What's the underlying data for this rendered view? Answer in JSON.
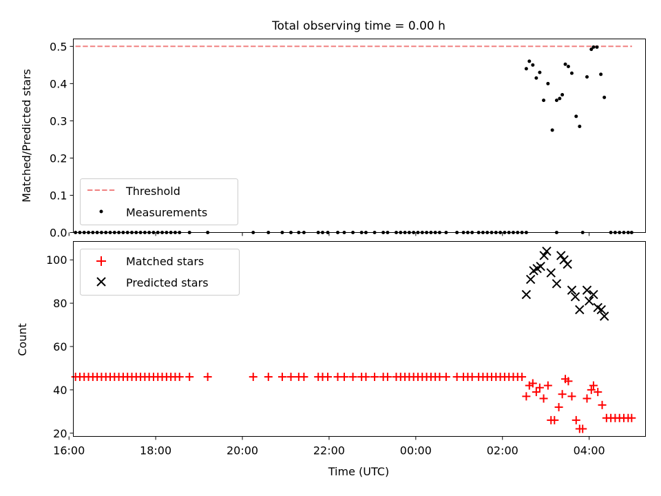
{
  "title": "Total observing time = 0.00 h",
  "colors": {
    "threshold": "#f08080",
    "measurements": "#000000",
    "matched": "#ff0000",
    "predicted": "#000000"
  },
  "chart_data": [
    {
      "type": "scatter",
      "panel": "top",
      "ylabel": "Matched/Predicted stars",
      "xlim": [
        16.1,
        29.3
      ],
      "ylim": [
        0,
        0.52
      ],
      "yticks": [
        0.0,
        0.1,
        0.2,
        0.3,
        0.4,
        0.5
      ],
      "ytick_labels": [
        "0.0",
        "0.1",
        "0.2",
        "0.3",
        "0.4",
        "0.5"
      ],
      "legend_position": "lower-left",
      "threshold": {
        "name": "Threshold",
        "style": "dashed",
        "x": [
          16.15,
          28.99
        ],
        "y": 0.5
      },
      "series": [
        {
          "name": "Measurements",
          "points": [
            [
              16.15,
              0
            ],
            [
              16.25,
              0
            ],
            [
              16.35,
              0
            ],
            [
              16.45,
              0
            ],
            [
              16.55,
              0
            ],
            [
              16.65,
              0
            ],
            [
              16.75,
              0
            ],
            [
              16.85,
              0
            ],
            [
              16.95,
              0
            ],
            [
              17.05,
              0
            ],
            [
              17.15,
              0
            ],
            [
              17.25,
              0
            ],
            [
              17.35,
              0
            ],
            [
              17.45,
              0
            ],
            [
              17.55,
              0
            ],
            [
              17.65,
              0
            ],
            [
              17.75,
              0
            ],
            [
              17.85,
              0
            ],
            [
              17.95,
              0
            ],
            [
              18.05,
              0
            ],
            [
              18.15,
              0
            ],
            [
              18.25,
              0
            ],
            [
              18.35,
              0
            ],
            [
              18.45,
              0
            ],
            [
              18.55,
              0
            ],
            [
              18.78,
              0
            ],
            [
              19.2,
              0
            ],
            [
              20.25,
              0
            ],
            [
              20.6,
              0
            ],
            [
              20.92,
              0
            ],
            [
              21.12,
              0
            ],
            [
              21.3,
              0
            ],
            [
              21.42,
              0
            ],
            [
              21.75,
              0
            ],
            [
              21.85,
              0
            ],
            [
              21.97,
              0
            ],
            [
              22.2,
              0
            ],
            [
              22.35,
              0
            ],
            [
              22.55,
              0
            ],
            [
              22.75,
              0
            ],
            [
              22.85,
              0
            ],
            [
              23.05,
              0
            ],
            [
              23.25,
              0
            ],
            [
              23.35,
              0
            ],
            [
              23.55,
              0
            ],
            [
              23.65,
              0
            ],
            [
              23.75,
              0
            ],
            [
              23.85,
              0
            ],
            [
              23.95,
              0
            ],
            [
              24.05,
              0
            ],
            [
              24.15,
              0
            ],
            [
              24.25,
              0
            ],
            [
              24.35,
              0
            ],
            [
              24.45,
              0
            ],
            [
              24.55,
              0
            ],
            [
              24.7,
              0
            ],
            [
              24.95,
              0
            ],
            [
              25.1,
              0
            ],
            [
              25.2,
              0
            ],
            [
              25.3,
              0
            ],
            [
              25.45,
              0
            ],
            [
              25.55,
              0
            ],
            [
              25.65,
              0
            ],
            [
              25.75,
              0
            ],
            [
              25.85,
              0
            ],
            [
              25.95,
              0
            ],
            [
              26.05,
              0
            ],
            [
              26.15,
              0
            ],
            [
              26.25,
              0
            ],
            [
              26.35,
              0
            ],
            [
              26.45,
              0
            ],
            [
              26.55,
              0
            ],
            [
              27.25,
              0
            ],
            [
              27.85,
              0
            ],
            [
              28.5,
              0
            ],
            [
              28.6,
              0
            ],
            [
              28.7,
              0
            ],
            [
              28.8,
              0
            ],
            [
              28.9,
              0
            ],
            [
              28.98,
              0
            ],
            [
              26.55,
              0.44
            ],
            [
              26.62,
              0.46
            ],
            [
              26.7,
              0.45
            ],
            [
              26.78,
              0.415
            ],
            [
              26.86,
              0.43
            ],
            [
              26.95,
              0.355
            ],
            [
              27.05,
              0.4
            ],
            [
              27.15,
              0.275
            ],
            [
              27.25,
              0.355
            ],
            [
              27.32,
              0.36
            ],
            [
              27.38,
              0.37
            ],
            [
              27.45,
              0.452
            ],
            [
              27.52,
              0.446
            ],
            [
              27.6,
              0.428
            ],
            [
              27.7,
              0.312
            ],
            [
              27.78,
              0.285
            ],
            [
              27.95,
              0.418
            ],
            [
              28.05,
              0.492
            ],
            [
              28.1,
              0.498
            ],
            [
              28.18,
              0.498
            ],
            [
              28.27,
              0.425
            ],
            [
              28.35,
              0.363
            ]
          ]
        }
      ]
    },
    {
      "type": "scatter",
      "panel": "bottom",
      "ylabel": "Count",
      "xlabel": "Time (UTC)",
      "xlim": [
        16.1,
        29.3
      ],
      "ylim": [
        18.5,
        108.5
      ],
      "yticks": [
        20,
        40,
        60,
        80,
        100
      ],
      "ytick_labels": [
        "20",
        "40",
        "60",
        "80",
        "100"
      ],
      "xticks": [
        16,
        18,
        20,
        22,
        24,
        26,
        28
      ],
      "xtick_labels": [
        "16:00",
        "18:00",
        "20:00",
        "22:00",
        "00:00",
        "02:00",
        "04:00"
      ],
      "legend_position": "upper-left",
      "series": [
        {
          "name": "Matched stars",
          "marker": "plus",
          "points": [
            [
              16.15,
              46
            ],
            [
              16.25,
              46
            ],
            [
              16.35,
              46
            ],
            [
              16.45,
              46
            ],
            [
              16.55,
              46
            ],
            [
              16.65,
              46
            ],
            [
              16.75,
              46
            ],
            [
              16.85,
              46
            ],
            [
              16.95,
              46
            ],
            [
              17.05,
              46
            ],
            [
              17.15,
              46
            ],
            [
              17.25,
              46
            ],
            [
              17.35,
              46
            ],
            [
              17.45,
              46
            ],
            [
              17.55,
              46
            ],
            [
              17.65,
              46
            ],
            [
              17.75,
              46
            ],
            [
              17.85,
              46
            ],
            [
              17.95,
              46
            ],
            [
              18.05,
              46
            ],
            [
              18.15,
              46
            ],
            [
              18.25,
              46
            ],
            [
              18.35,
              46
            ],
            [
              18.45,
              46
            ],
            [
              18.55,
              46
            ],
            [
              18.78,
              46
            ],
            [
              19.2,
              46
            ],
            [
              20.25,
              46
            ],
            [
              20.6,
              46
            ],
            [
              20.92,
              46
            ],
            [
              21.12,
              46
            ],
            [
              21.3,
              46
            ],
            [
              21.42,
              46
            ],
            [
              21.75,
              46
            ],
            [
              21.85,
              46
            ],
            [
              21.97,
              46
            ],
            [
              22.2,
              46
            ],
            [
              22.35,
              46
            ],
            [
              22.55,
              46
            ],
            [
              22.75,
              46
            ],
            [
              22.85,
              46
            ],
            [
              23.05,
              46
            ],
            [
              23.25,
              46
            ],
            [
              23.35,
              46
            ],
            [
              23.55,
              46
            ],
            [
              23.65,
              46
            ],
            [
              23.75,
              46
            ],
            [
              23.85,
              46
            ],
            [
              23.95,
              46
            ],
            [
              24.05,
              46
            ],
            [
              24.15,
              46
            ],
            [
              24.25,
              46
            ],
            [
              24.35,
              46
            ],
            [
              24.45,
              46
            ],
            [
              24.55,
              46
            ],
            [
              24.7,
              46
            ],
            [
              24.95,
              46
            ],
            [
              25.1,
              46
            ],
            [
              25.2,
              46
            ],
            [
              25.3,
              46
            ],
            [
              25.45,
              46
            ],
            [
              25.55,
              46
            ],
            [
              25.65,
              46
            ],
            [
              25.75,
              46
            ],
            [
              25.85,
              46
            ],
            [
              25.95,
              46
            ],
            [
              26.05,
              46
            ],
            [
              26.15,
              46
            ],
            [
              26.25,
              46
            ],
            [
              26.35,
              46
            ],
            [
              26.45,
              46
            ],
            [
              26.55,
              37
            ],
            [
              26.62,
              42
            ],
            [
              26.7,
              43
            ],
            [
              26.78,
              39
            ],
            [
              26.86,
              41
            ],
            [
              26.95,
              36
            ],
            [
              27.05,
              42
            ],
            [
              27.12,
              26
            ],
            [
              27.2,
              26
            ],
            [
              27.3,
              32
            ],
            [
              27.38,
              38
            ],
            [
              27.45,
              45
            ],
            [
              27.52,
              44
            ],
            [
              27.6,
              37
            ],
            [
              27.7,
              26
            ],
            [
              27.78,
              22
            ],
            [
              27.85,
              22
            ],
            [
              27.95,
              36
            ],
            [
              28.05,
              40
            ],
            [
              28.1,
              42
            ],
            [
              28.2,
              39
            ],
            [
              28.3,
              33
            ],
            [
              28.4,
              27
            ],
            [
              28.5,
              27
            ],
            [
              28.6,
              27
            ],
            [
              28.7,
              27
            ],
            [
              28.8,
              27
            ],
            [
              28.9,
              27
            ],
            [
              28.98,
              27
            ]
          ]
        },
        {
          "name": "Predicted stars",
          "marker": "x",
          "points": [
            [
              26.55,
              84
            ],
            [
              26.65,
              91
            ],
            [
              26.72,
              95
            ],
            [
              26.8,
              96
            ],
            [
              26.88,
              97
            ],
            [
              26.96,
              102
            ],
            [
              27.02,
              104
            ],
            [
              27.12,
              94
            ],
            [
              27.25,
              89
            ],
            [
              27.35,
              102
            ],
            [
              27.42,
              100
            ],
            [
              27.5,
              98
            ],
            [
              27.6,
              86
            ],
            [
              27.68,
              83
            ],
            [
              27.78,
              77
            ],
            [
              27.95,
              86
            ],
            [
              28.0,
              81
            ],
            [
              28.1,
              84
            ],
            [
              28.2,
              78
            ],
            [
              28.28,
              77
            ],
            [
              28.35,
              74
            ]
          ]
        }
      ]
    }
  ]
}
